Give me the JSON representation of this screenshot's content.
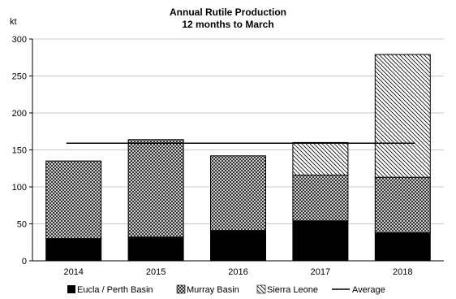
{
  "chart_data": {
    "type": "bar",
    "stacked": true,
    "title": "Annual Rutile Production",
    "subtitle": "12 months to March",
    "ylabel": "kt",
    "xlabel": "",
    "categories": [
      "2014",
      "2015",
      "2016",
      "2017",
      "2018"
    ],
    "ylim": [
      0,
      300
    ],
    "yticks": [
      0,
      50,
      100,
      150,
      200,
      250,
      300
    ],
    "grid": "horizontal",
    "legend_position": "bottom",
    "series": [
      {
        "name": "Eucla / Perth Basin",
        "values": [
          30,
          32,
          41,
          54,
          38
        ],
        "pattern": "solid",
        "color": "#000000"
      },
      {
        "name": "Murray Basin",
        "values": [
          105,
          132,
          101,
          62,
          75
        ],
        "pattern": "crosshatch",
        "color": "#000000"
      },
      {
        "name": "Sierra Leone",
        "values": [
          0,
          0,
          0,
          44,
          166
        ],
        "pattern": "diagonal",
        "color": "#000000"
      }
    ],
    "average": {
      "name": "Average",
      "value": 159,
      "color": "#000000"
    }
  }
}
